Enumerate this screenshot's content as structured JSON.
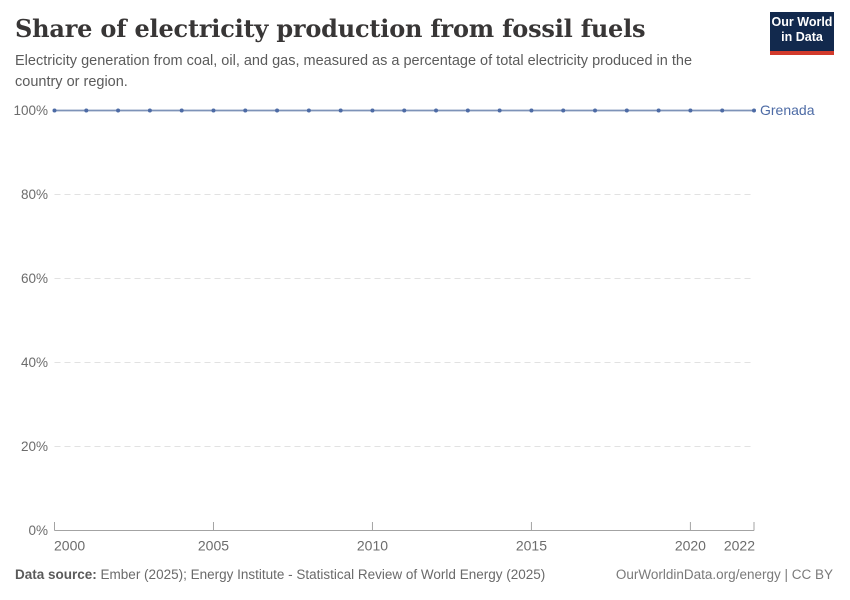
{
  "header": {
    "title": "Share of electricity production from fossil fuels",
    "subtitle": "Electricity generation from coal, oil, and gas, measured as a percentage of total electricity produced in the country or region."
  },
  "logo": {
    "line1": "Our World",
    "line2": "in Data",
    "bg_color": "#12294d",
    "accent_color": "#d23a2c"
  },
  "chart_data": {
    "type": "line",
    "title": "Share of electricity production from fossil fuels",
    "x": [
      2000,
      2001,
      2002,
      2003,
      2004,
      2005,
      2006,
      2007,
      2008,
      2009,
      2010,
      2011,
      2012,
      2013,
      2014,
      2015,
      2016,
      2017,
      2018,
      2019,
      2020,
      2021,
      2022
    ],
    "series": [
      {
        "name": "Grenada",
        "values": [
          100,
          100,
          100,
          100,
          100,
          100,
          100,
          100,
          100,
          100,
          100,
          100,
          100,
          100,
          100,
          100,
          100,
          100,
          100,
          100,
          100,
          100,
          100
        ],
        "point_color": "#4d6ba5",
        "line_color": "#7e93b8"
      }
    ],
    "x_ticks": [
      2000,
      2005,
      2010,
      2015,
      2020,
      2022
    ],
    "y_ticks": [
      0,
      20,
      40,
      60,
      80,
      100
    ],
    "y_tick_suffix": "%",
    "xlim": [
      2000,
      2022
    ],
    "ylim": [
      0,
      100
    ],
    "grid": "horizontal-dashed",
    "grid_color": "#e2e2e2",
    "axis_color": "#a3a3a3",
    "tick_label_color": "#6c6c6c",
    "legend_position": "series-end-label"
  },
  "footer": {
    "source_label": "Data source:",
    "source_text": "Ember (2025); Energy Institute - Statistical Review of World Energy (2025)",
    "credit": "OurWorldinData.org/energy | CC BY"
  }
}
